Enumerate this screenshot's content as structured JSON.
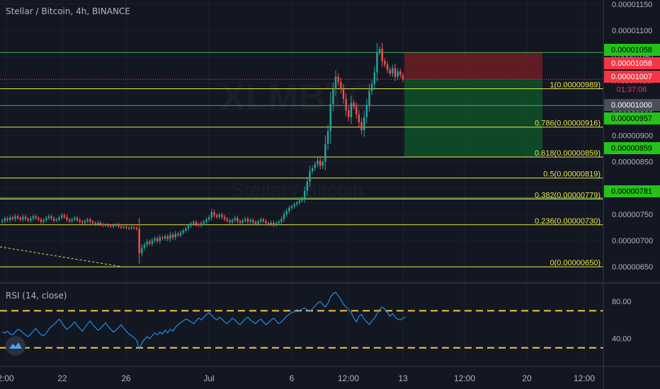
{
  "header": {
    "title": "Stellar / Bitcoin, 4h, BINANCE"
  },
  "rsi": {
    "title": "RSI (14, close)",
    "levels": [
      70,
      30
    ],
    "axis_labels": [
      "80.00",
      "40.00"
    ]
  },
  "watermark": {
    "symbol": "XLMBTC",
    "name": "Stellar / Bitcoin"
  },
  "colors": {
    "background": "#131722",
    "fib": "#e8e84a",
    "green_line": "#4caf50",
    "candle_up": "#26a69a",
    "candle_down": "#ef5350",
    "rsi_line": "#2196f3",
    "rsi_band": "#f5c542",
    "stop_zone": "#7a1f24",
    "target_zone": "#0f5a2a"
  },
  "chart_data": {
    "type": "candlestick",
    "symbol": "Stellar / Bitcoin",
    "interval": "4h",
    "exchange": "BINANCE",
    "y_axis_ticks": [
      "0.00001150",
      "0.00001100",
      "0.00001050",
      "0.00001000",
      "0.00000950",
      "0.00000900",
      "0.00000850",
      "0.00000800",
      "0.00000750",
      "0.00000700",
      "0.00000650"
    ],
    "ylim": [
      6.22e-06,
      1.158e-05
    ],
    "x_axis_ticks": [
      "2:00",
      "22",
      "26",
      "Jul",
      "6",
      "12:00",
      "13",
      "12:00",
      "20",
      "12:00"
    ],
    "fibonacci_levels": [
      {
        "ratio": "1",
        "price": 9.89e-06,
        "label": "1(0.00000989)"
      },
      {
        "ratio": "0.786",
        "price": 9.16e-06,
        "label": "0.786(0.00000916)"
      },
      {
        "ratio": "0.618",
        "price": 8.59e-06,
        "label": "0.618(0.00000859)"
      },
      {
        "ratio": "0.5",
        "price": 8.19e-06,
        "label": "0.5(0.00000819)"
      },
      {
        "ratio": "0.382",
        "price": 7.79e-06,
        "label": "0.382(0.00000779)"
      },
      {
        "ratio": "0.236",
        "price": 7.3e-06,
        "label": "0.236(0.00000730)"
      },
      {
        "ratio": "0",
        "price": 6.5e-06,
        "label": "0(0.00000650)"
      }
    ],
    "horizontal_lines": [
      {
        "price": 1.058e-05,
        "color": "green"
      },
      {
        "price": 9.57e-06,
        "color": "green"
      },
      {
        "price": 7.81e-06,
        "color": "green"
      }
    ],
    "price_labels": [
      {
        "text": "0.00001058",
        "style": "green"
      },
      {
        "text": "0.00001058",
        "style": "red"
      },
      {
        "text": "0.00001007",
        "style": "red"
      },
      {
        "text": "01:37:06",
        "style": "timer"
      },
      {
        "text": "0.00001000",
        "style": "gray"
      },
      {
        "text": "0.00000957",
        "style": "green"
      },
      {
        "text": "0.00000859",
        "style": "green"
      },
      {
        "text": "0.00000781",
        "style": "green"
      }
    ],
    "current_price": 1.007e-05,
    "countdown": "01:37:06",
    "position": {
      "entry": 1.007e-05,
      "stop": 1.058e-05,
      "target": 8.59e-06
    },
    "closes": [
      7.38e-06,
      7.42e-06,
      7.39e-06,
      7.44e-06,
      7.41e-06,
      7.46e-06,
      7.43e-06,
      7.4e-06,
      7.45e-06,
      7.41e-06,
      7.38e-06,
      7.42e-06,
      7.46e-06,
      7.43e-06,
      7.4e-06,
      7.36e-06,
      7.39e-06,
      7.43e-06,
      7.46e-06,
      7.42e-06,
      7.38e-06,
      7.4e-06,
      7.44e-06,
      7.48e-06,
      7.45e-06,
      7.4e-06,
      7.37e-06,
      7.4e-06,
      7.43e-06,
      7.39e-06,
      7.36e-06,
      7.34e-06,
      7.37e-06,
      7.4e-06,
      7.36e-06,
      7.33e-06,
      7.31e-06,
      7.34e-06,
      7.31e-06,
      7.29e-06,
      7.3e-06,
      7.28e-06,
      7.27e-06,
      7.29e-06,
      7.3e-06,
      7.27e-06,
      7.25e-06,
      7.26e-06,
      7.24e-06,
      7.23e-06,
      7.25e-06,
      7.24e-06,
      7.22e-06,
      6.76e-06,
      6.86e-06,
      6.92e-06,
      6.98e-06,
      6.94e-06,
      7e-06,
      7.04e-06,
      6.99e-06,
      7.06e-06,
      7.04e-06,
      7.08e-06,
      7.03e-06,
      7.11e-06,
      7.06e-06,
      7.13e-06,
      7.1e-06,
      7.15e-06,
      7.19e-06,
      7.23e-06,
      7.28e-06,
      7.32e-06,
      7.35e-06,
      7.31e-06,
      7.29e-06,
      7.33e-06,
      7.36e-06,
      7.4e-06,
      7.44e-06,
      7.54e-06,
      7.48e-06,
      7.45e-06,
      7.49e-06,
      7.45e-06,
      7.41e-06,
      7.38e-06,
      7.35e-06,
      7.39e-06,
      7.43e-06,
      7.37e-06,
      7.34e-06,
      7.38e-06,
      7.41e-06,
      7.36e-06,
      7.39e-06,
      7.35e-06,
      7.32e-06,
      7.36e-06,
      7.4e-06,
      7.37e-06,
      7.33e-06,
      7.31e-06,
      7.34e-06,
      7.3e-06,
      7.33e-06,
      7.36e-06,
      7.41e-06,
      7.5e-06,
      7.56e-06,
      7.62e-06,
      7.65e-06,
      7.69e-06,
      7.72e-06,
      7.76e-06,
      7.8e-06,
      7.95e-06,
      8.12e-06,
      8.32e-06,
      8.38e-06,
      8.45e-06,
      8.52e-06,
      8.42e-06,
      8.5e-06,
      8.84e-06,
      9.08e-06,
      9.6e-06,
      9.88e-06,
      1.012e-05,
      1.002e-05,
      9.88e-06,
      9.7e-06,
      9.48e-06,
      9.35e-06,
      9.62e-06,
      9.55e-06,
      9.4e-06,
      9.25e-06,
      9.1e-06,
      9.35e-06,
      9.58e-06,
      9.85e-06,
      9.98e-06,
      1.02e-05,
      1.058e-05,
      1.065e-05,
      1.042e-05,
      1.035e-05,
      1.025e-05,
      1.018e-05,
      1.028e-05,
      1.012e-05,
      1.022e-05,
      1.015e-05,
      1.007e-05
    ],
    "rsi_values": [
      47,
      46,
      48,
      45,
      44,
      47,
      50,
      49,
      46,
      44,
      42,
      45,
      48,
      51,
      47,
      44,
      43,
      46,
      50,
      53,
      55,
      58,
      61,
      57,
      53,
      50,
      52,
      55,
      58,
      54,
      51,
      48,
      52,
      56,
      59,
      55,
      52,
      49,
      51,
      54,
      57,
      53,
      50,
      47,
      49,
      52,
      55,
      51,
      48,
      45,
      43,
      41,
      38,
      29,
      35,
      39,
      42,
      40,
      43,
      46,
      44,
      47,
      45,
      49,
      46,
      50,
      48,
      52,
      55,
      57,
      59,
      61,
      60,
      58,
      56,
      59,
      62,
      60,
      63,
      66,
      68,
      65,
      62,
      60,
      63,
      61,
      58,
      56,
      59,
      62,
      60,
      57,
      55,
      58,
      61,
      63,
      60,
      58,
      56,
      59,
      61,
      58,
      55,
      57,
      60,
      62,
      59,
      56,
      58,
      61,
      64,
      66,
      68,
      69,
      71,
      70,
      72,
      73,
      71,
      69,
      72,
      75,
      78,
      80,
      77,
      74,
      78,
      85,
      88,
      90,
      86,
      82,
      77,
      74,
      71,
      68,
      62,
      58,
      64,
      66,
      61,
      58,
      55,
      59,
      62,
      67,
      71,
      74,
      72,
      68,
      64,
      67,
      63,
      61,
      60,
      62,
      63
    ]
  }
}
